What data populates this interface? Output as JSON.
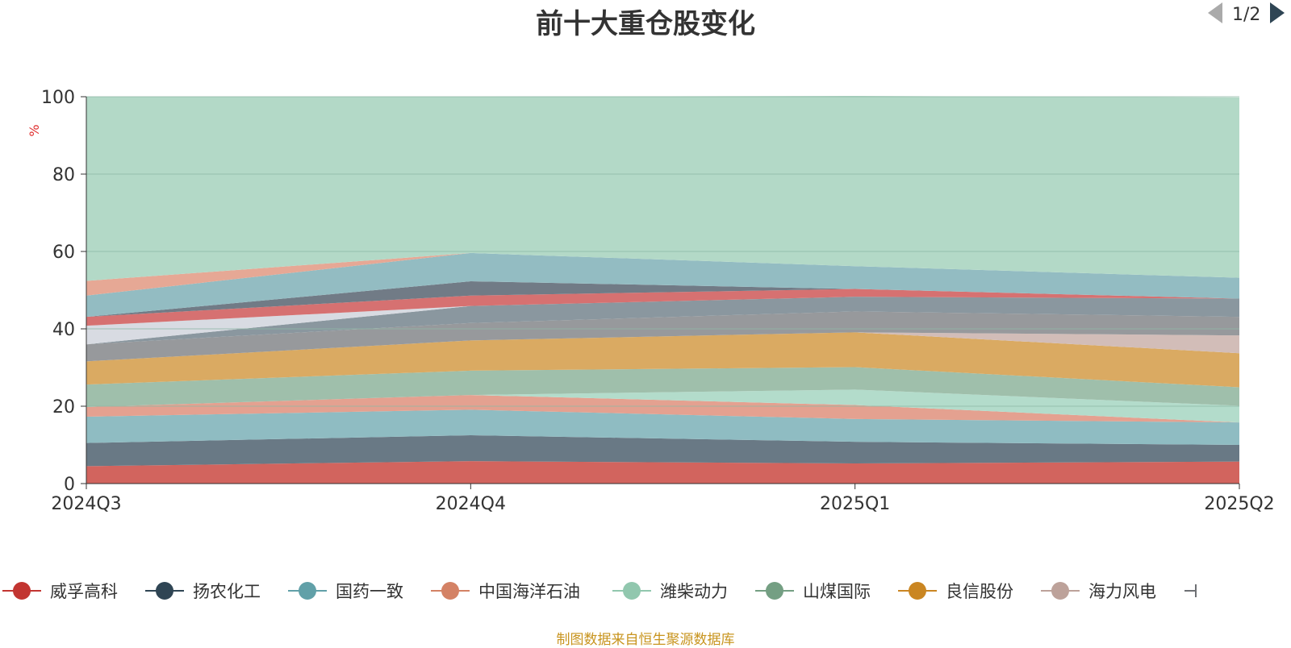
{
  "chart_data": {
    "type": "area",
    "stacked": true,
    "title": "前十大重仓股变化",
    "ylabel": "%",
    "xlabel": "",
    "ylim": [
      0,
      100
    ],
    "yticks": [
      0,
      20,
      40,
      60,
      80,
      100
    ],
    "x": [
      "2024Q3",
      "2024Q4",
      "2025Q1",
      "2025Q2"
    ],
    "grid": true,
    "legend_position": "bottom",
    "series": [
      {
        "name": "",
        "color": "#d2645e",
        "values": [
          4.5,
          5.8,
          5.2,
          5.7
        ]
      },
      {
        "name": "",
        "color": "#697985",
        "values": [
          6.0,
          6.7,
          5.6,
          4.3
        ]
      },
      {
        "name": "",
        "color": "#8fbcc2",
        "values": [
          6.8,
          6.6,
          5.9,
          5.8
        ]
      },
      {
        "name": "",
        "color": "#e4a190",
        "values": [
          2.5,
          3.8,
          3.6,
          0.0
        ]
      },
      {
        "name": "",
        "color": "#b3dccb",
        "values": [
          0.0,
          0.0,
          4.0,
          4.3
        ]
      },
      {
        "name": "",
        "color": "#9fbfab",
        "values": [
          5.8,
          6.3,
          5.8,
          4.8
        ]
      },
      {
        "name": "",
        "color": "#daaa62",
        "values": [
          6.0,
          7.8,
          9.0,
          8.8
        ]
      },
      {
        "name": "",
        "color": "#d2bdb8",
        "values": [
          0.0,
          0.0,
          0.0,
          4.6
        ]
      },
      {
        "name": "",
        "color": "#97999c",
        "values": [
          4.4,
          4.5,
          5.4,
          4.8
        ]
      },
      {
        "name": "",
        "color": "#8a979f",
        "values": [
          0.0,
          4.4,
          3.8,
          4.7
        ]
      },
      {
        "name": "",
        "color": "#d8dbe2",
        "values": [
          4.8,
          0.0,
          0.0,
          0.0
        ]
      },
      {
        "name": "",
        "color": "#d67171",
        "values": [
          2.3,
          2.7,
          2.0,
          0.0
        ]
      },
      {
        "name": "",
        "color": "#717b86",
        "values": [
          0.0,
          3.7,
          0.0,
          0.0
        ]
      },
      {
        "name": "",
        "color": "#93bcc2",
        "values": [
          5.5,
          7.3,
          5.9,
          5.4
        ]
      },
      {
        "name": "",
        "color": "#e6a895",
        "values": [
          3.8,
          0.0,
          0.0,
          0.0
        ]
      },
      {
        "name": "",
        "color": "#b3d9c7",
        "values": [
          47.6,
          40.4,
          44.0,
          46.6
        ]
      }
    ]
  },
  "legend": {
    "items": [
      {
        "name": "威孚高科",
        "color": "#c23531"
      },
      {
        "name": "扬农化工",
        "color": "#2f4554"
      },
      {
        "name": "国药一致",
        "color": "#61a0a8"
      },
      {
        "name": "中国海洋石油",
        "color": "#d48265"
      },
      {
        "name": "潍柴动力",
        "color": "#91c7ae"
      },
      {
        "name": "山煤国际",
        "color": "#749f83"
      },
      {
        "name": "良信股份",
        "color": "#ca8622"
      },
      {
        "name": "海力风电",
        "color": "#bda29a"
      }
    ],
    "pager": "1/2",
    "prev_icon": "triangle-left-icon",
    "next_icon": "triangle-right-icon"
  },
  "footer": {
    "source": "制图数据来自恒生聚源数据库"
  }
}
